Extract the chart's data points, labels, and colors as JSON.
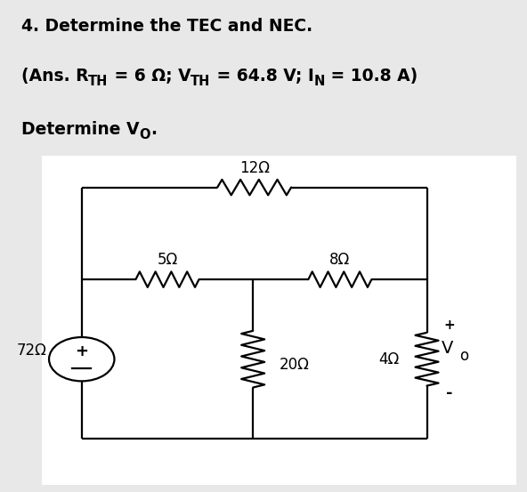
{
  "bg_color": "#e8e8e8",
  "circuit_bg": "#ffffff",
  "line_color": "#000000",
  "text_color": "#000000",
  "font_size_title": 13.5,
  "font_size_circuit": 12,
  "resistor_12": "12Ω",
  "resistor_5": "5Ω",
  "resistor_8": "8Ω",
  "resistor_72": "72Ω",
  "resistor_20": "20Ω",
  "resistor_4": "4Ω",
  "line1": "4. Determine the TEC and NEC.",
  "line2_parts": [
    "(Ans. R",
    "TH",
    " = 6 Ω; V",
    "TH",
    " = 64.8 V; I",
    "N",
    " = 10.8 A)"
  ],
  "line3_main": "Determine V",
  "line3_sub": "O",
  "lw": 1.6
}
